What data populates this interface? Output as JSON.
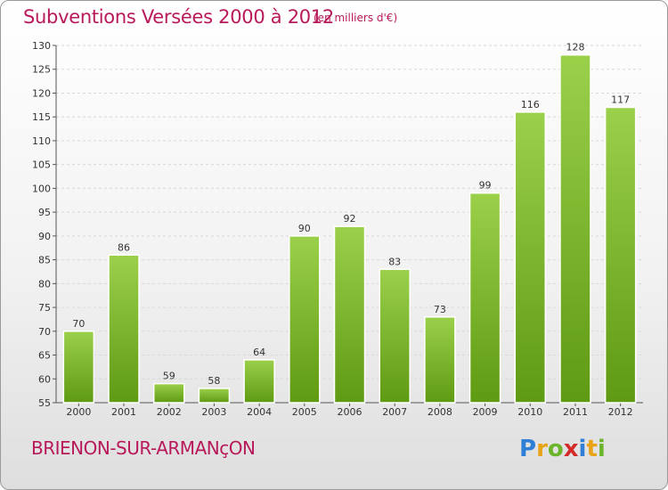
{
  "header": {
    "title": "Subventions Versées 2000 à 2012",
    "subtitle": "(en milliers d'€)"
  },
  "footer": {
    "commune": "BRIENON-SUR-ARMANçON",
    "logo_letters": [
      "P",
      "r",
      "o",
      "x",
      "i",
      "t",
      "i"
    ],
    "logo_colors": [
      "#2f7fd6",
      "#e8a317",
      "#6bb52a",
      "#d42a2a",
      "#2f7fd6",
      "#e8a317",
      "#6bb52a"
    ]
  },
  "chart_data": {
    "type": "bar",
    "categories": [
      "2000",
      "2001",
      "2002",
      "2003",
      "2004",
      "2005",
      "2006",
      "2007",
      "2008",
      "2009",
      "2010",
      "2011",
      "2012"
    ],
    "values": [
      70,
      86,
      59,
      58,
      64,
      90,
      92,
      83,
      73,
      99,
      116,
      128,
      117
    ],
    "ylim": [
      55,
      130
    ],
    "yticks": [
      55,
      60,
      65,
      70,
      75,
      80,
      85,
      90,
      95,
      100,
      105,
      110,
      115,
      120,
      125,
      130
    ],
    "grid": true,
    "bar_color_top": "#9bd04a",
    "bar_color_bottom": "#5e9a12"
  }
}
